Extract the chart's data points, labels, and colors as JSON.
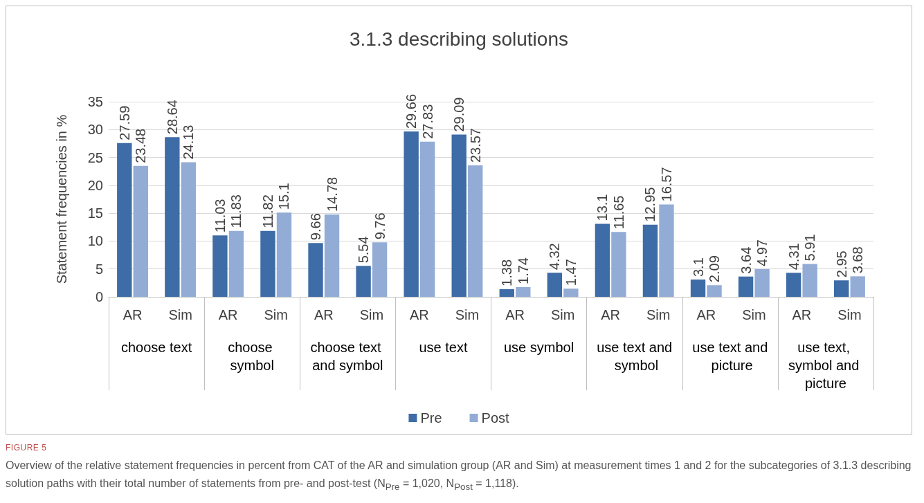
{
  "chart_data": {
    "type": "bar",
    "title": "3.1.3 describing solutions",
    "ylabel": "Statement frequencies in %",
    "categories": [
      "AR",
      "Sim",
      "AR",
      "Sim",
      "AR",
      "Sim",
      "AR",
      "Sim",
      "AR",
      "Sim",
      "AR",
      "Sim",
      "AR",
      "Sim",
      "AR",
      "Sim"
    ],
    "series": [
      {
        "name": "Pre",
        "color": "#3e6ca6",
        "values": [
          27.59,
          28.64,
          11.03,
          11.82,
          9.66,
          5.54,
          29.66,
          29.09,
          1.38,
          4.32,
          13.1,
          12.95,
          3.1,
          3.64,
          4.31,
          2.95
        ]
      },
      {
        "name": "Post",
        "color": "#93acd5",
        "values": [
          23.48,
          24.13,
          11.83,
          15.1,
          14.78,
          9.76,
          27.83,
          23.57,
          1.74,
          1.47,
          11.65,
          16.57,
          2.09,
          4.97,
          5.91,
          3.68
        ]
      }
    ],
    "ylim": [
      0,
      35
    ],
    "yticks": [
      0,
      5,
      10,
      15,
      20,
      25,
      30,
      35
    ],
    "grid": "y",
    "legend": "bottom",
    "data_labels": true,
    "annotations": [
      "choose text",
      "choose symbol",
      "choose text and symbol",
      "use text",
      "use symbol",
      "use text and symbol",
      "use text and picture",
      "use text, symbol and picture",
      "FIGURE 5",
      "Overview of the relative statement frequencies in percent from CAT of the AR and simulation group (AR and Sim) at measurement times 1 and 2 for the subcategories of 3.1.3 describing solution paths with their total number of statements from pre- and post-test (N$_{Pre}$ = 1,020, N$_{Post}$ = 1,118)."
    ]
  }
}
